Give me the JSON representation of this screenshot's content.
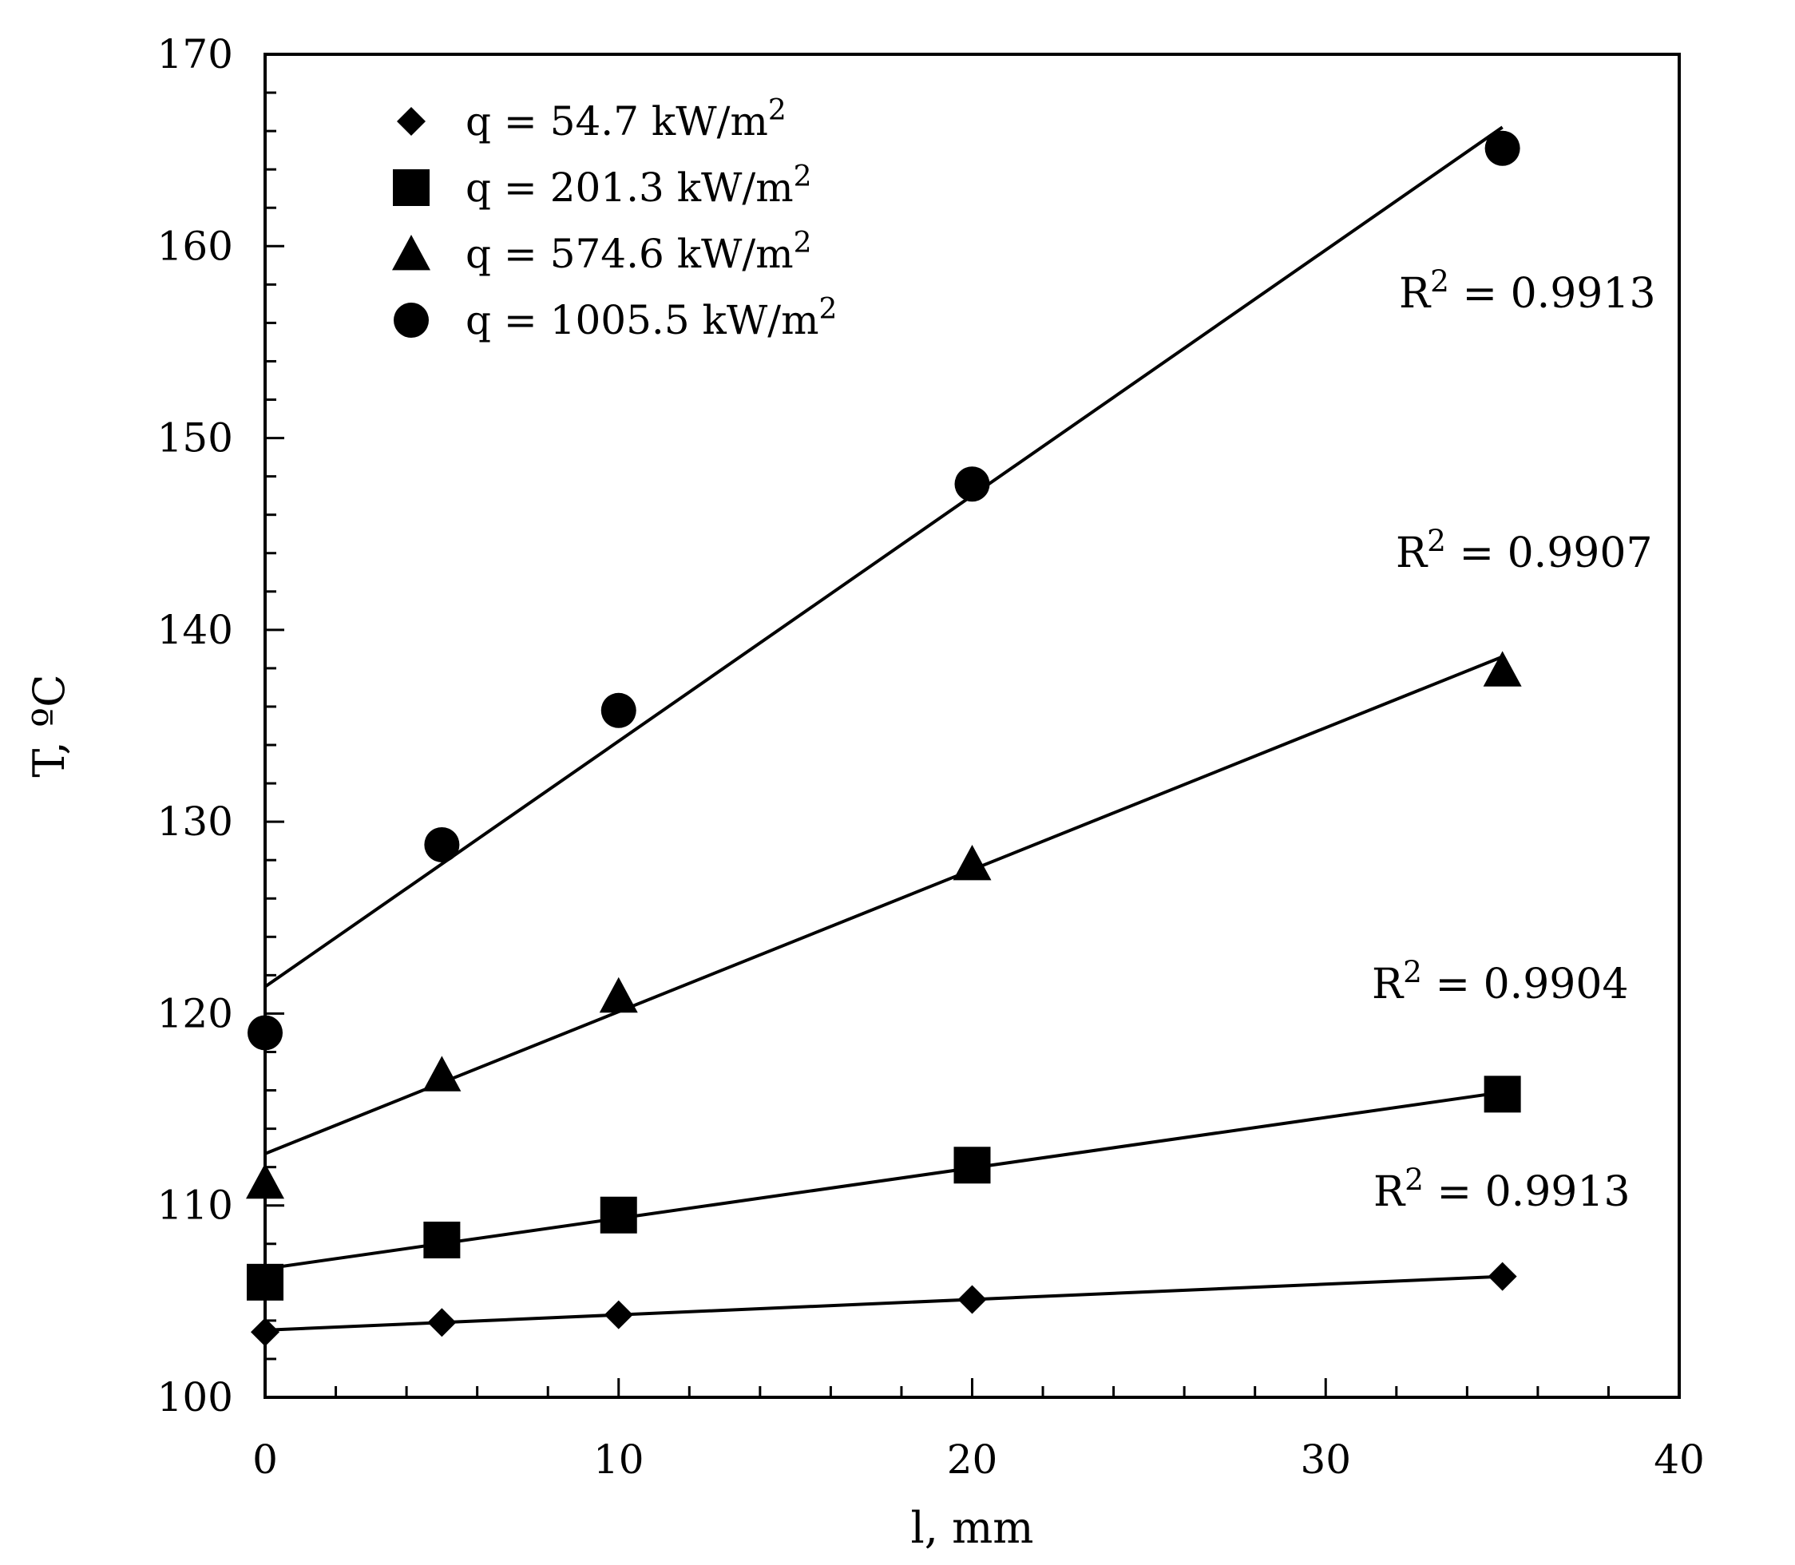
{
  "chart_data": {
    "type": "scatter",
    "xlabel": "l, mm",
    "ylabel": "T, ºC",
    "xlim": [
      0,
      40
    ],
    "ylim": [
      100,
      170
    ],
    "x_ticks": [
      0,
      10,
      20,
      30,
      40
    ],
    "y_ticks": [
      100,
      110,
      120,
      130,
      140,
      150,
      160,
      170
    ],
    "x_minor_step": 2,
    "y_minor_step": 2,
    "grid": false,
    "legend_position": "top-left",
    "series": [
      {
        "name": "q = 54.7 kW/m2",
        "label_main": "q = 54.7 kW/m",
        "label_sup": "2",
        "marker": "diamond",
        "x": [
          0,
          5,
          10,
          20,
          35
        ],
        "y": [
          103.4,
          103.9,
          104.3,
          105.1,
          106.3
        ],
        "trend": {
          "x0": 0,
          "y0": 103.5,
          "x1": 35,
          "y1": 106.3
        },
        "r2_main": "R",
        "r2_sup": "2",
        "r2_value": " = 0.9913"
      },
      {
        "name": "q = 201.3 kW/m2",
        "label_main": "q = 201.3 kW/m",
        "label_sup": "2",
        "marker": "square",
        "x": [
          0,
          5,
          10,
          20,
          35
        ],
        "y": [
          106.0,
          108.2,
          109.5,
          112.1,
          115.8
        ],
        "trend": {
          "x0": 0,
          "y0": 106.7,
          "x1": 35,
          "y1": 115.9
        },
        "r2_main": "R",
        "r2_sup": "2",
        "r2_value": " = 0.9904"
      },
      {
        "name": "q = 574.6 kW/m2",
        "label_main": "q = 574.6 kW/m",
        "label_sup": "2",
        "marker": "triangle",
        "x": [
          0,
          5,
          10,
          20,
          35
        ],
        "y": [
          111.2,
          116.8,
          120.9,
          127.8,
          137.9
        ],
        "trend": {
          "x0": 0,
          "y0": 112.7,
          "x1": 35,
          "y1": 138.6
        },
        "r2_main": "R",
        "r2_sup": "2",
        "r2_value": " = 0.9907"
      },
      {
        "name": "q = 1005.5 kW/m2",
        "label_main": "q = 1005.5 kW/m",
        "label_sup": "2",
        "marker": "circle",
        "x": [
          0,
          5,
          10,
          20,
          35
        ],
        "y": [
          119.0,
          128.8,
          135.8,
          147.6,
          165.1
        ],
        "trend": {
          "x0": 0,
          "y0": 121.4,
          "x1": 35,
          "y1": 166.2
        },
        "r2_main": "R",
        "r2_sup": "2",
        "r2_value": " = 0.9913"
      }
    ]
  }
}
